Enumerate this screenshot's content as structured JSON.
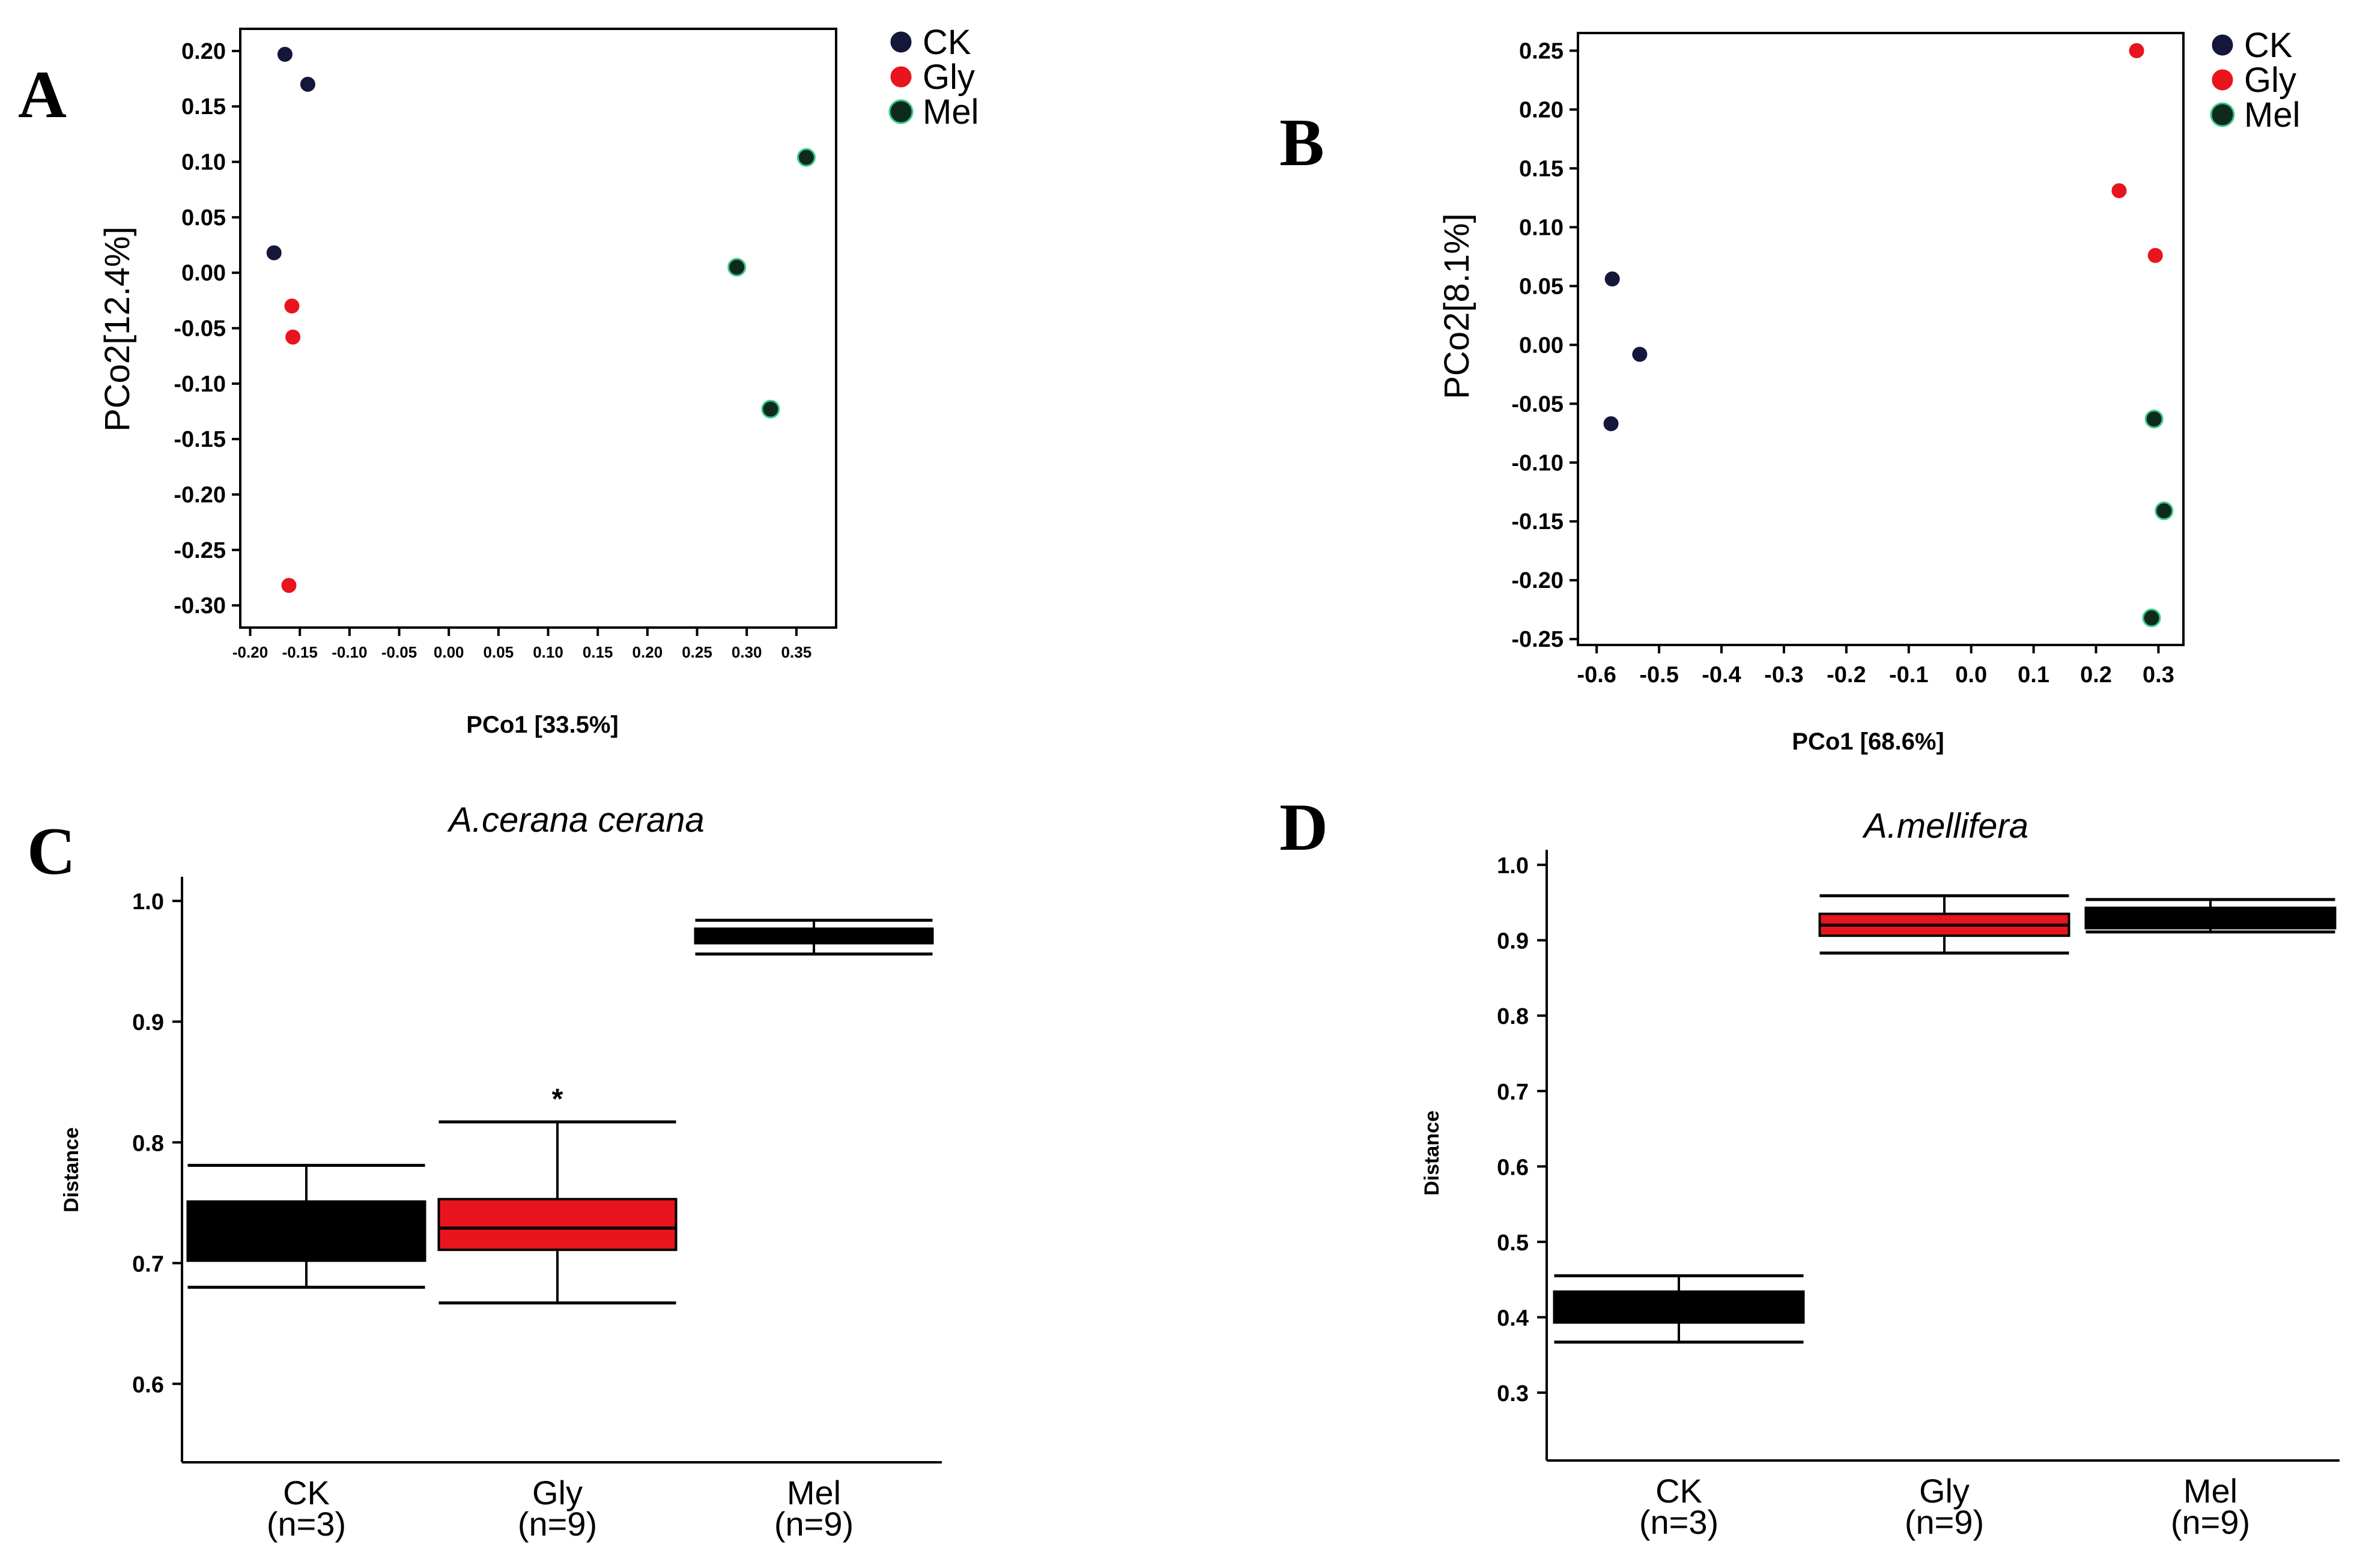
{
  "colors": {
    "CK": "#14173a",
    "Gly": "#e8141e",
    "Mel": "#0d2a1c",
    "Mel_edge": "#3cc98a",
    "box_black": "#000000",
    "box_red": "#e8141e"
  },
  "panels": {
    "A": {
      "letter": "A"
    },
    "B": {
      "letter": "B"
    },
    "C": {
      "letter": "C"
    },
    "D": {
      "letter": "D"
    }
  },
  "chart_data": [
    {
      "id": "A",
      "type": "scatter",
      "title": "",
      "xlabel": "PCo1 [33.5%]",
      "ylabel": "PCo2[12.4%]",
      "xlim": [
        -0.21,
        0.39
      ],
      "ylim": [
        -0.32,
        0.22
      ],
      "xticks": [
        "-0.20",
        "-0.15",
        "-0.10",
        "-0.05",
        "0.00",
        "0.05",
        "0.10",
        "0.15",
        "0.20",
        "0.25",
        "0.30",
        "0.35"
      ],
      "yticks": [
        "0.20",
        "0.15",
        "0.10",
        "0.05",
        "0.00",
        "-0.05",
        "-0.10",
        "-0.15",
        "-0.20",
        "-0.25",
        "-0.30"
      ],
      "legend": [
        "CK",
        "Gly",
        "Mel"
      ],
      "series": [
        {
          "name": "CK",
          "points": [
            [
              -0.165,
              0.197
            ],
            [
              -0.142,
              0.17
            ],
            [
              -0.176,
              0.018
            ]
          ]
        },
        {
          "name": "Gly",
          "points": [
            [
              -0.158,
              -0.03
            ],
            [
              -0.157,
              -0.058
            ],
            [
              -0.161,
              -0.282
            ]
          ]
        },
        {
          "name": "Mel",
          "points": [
            [
              0.36,
              0.104
            ],
            [
              0.29,
              0.005
            ],
            [
              0.324,
              -0.123
            ]
          ]
        }
      ]
    },
    {
      "id": "B",
      "type": "scatter",
      "title": "",
      "xlabel": "PCo1 [68.6%]",
      "ylabel": "PCo2[8.1%]",
      "xlim": [
        -0.63,
        0.34
      ],
      "ylim": [
        -0.255,
        0.265
      ],
      "xticks": [
        "-0.6",
        "-0.5",
        "-0.4",
        "-0.3",
        "-0.2",
        "-0.1",
        "0.0",
        "0.1",
        "0.2",
        "0.3"
      ],
      "yticks": [
        "0.25",
        "0.20",
        "0.15",
        "0.10",
        "0.05",
        "0.00",
        "-0.05",
        "-0.10",
        "-0.15",
        "-0.20",
        "-0.25"
      ],
      "legend": [
        "CK",
        "Gly",
        "Mel"
      ],
      "series": [
        {
          "name": "CK",
          "points": [
            [
              -0.575,
              0.056
            ],
            [
              -0.531,
              -0.008
            ],
            [
              -0.577,
              -0.067
            ]
          ]
        },
        {
          "name": "Gly",
          "points": [
            [
              0.265,
              0.25
            ],
            [
              0.237,
              0.131
            ],
            [
              0.295,
              0.076
            ]
          ]
        },
        {
          "name": "Mel",
          "points": [
            [
              0.293,
              -0.063
            ],
            [
              0.309,
              -0.141
            ],
            [
              0.289,
              -0.232
            ]
          ]
        }
      ]
    },
    {
      "id": "C",
      "type": "box",
      "title": "A.cerana cerana",
      "xlabel": "",
      "ylabel": "Distance",
      "ylim": [
        0.535,
        1.02
      ],
      "yticks": [
        "0.6",
        "0.7",
        "0.8",
        "0.9",
        "1.0"
      ],
      "categories": [
        {
          "name": "CK",
          "n": "(n=3)",
          "min": 0.68,
          "q1": 0.702,
          "median": 0.722,
          "q3": 0.751,
          "max": 0.781,
          "color": "black"
        },
        {
          "name": "Gly",
          "n": "(n=9)",
          "min": 0.667,
          "q1": 0.711,
          "median": 0.729,
          "q3": 0.753,
          "max": 0.817,
          "color": "red",
          "annotation": "*"
        },
        {
          "name": "Mel",
          "n": "(n=9)",
          "min": 0.956,
          "q1": 0.965,
          "median": 0.971,
          "q3": 0.977,
          "max": 0.984,
          "color": "black"
        }
      ]
    },
    {
      "id": "D",
      "type": "box",
      "title": "A.mellifera",
      "xlabel": "",
      "ylabel": "Distance",
      "ylim": [
        0.21,
        1.02
      ],
      "yticks": [
        "0.3",
        "0.4",
        "0.5",
        "0.6",
        "0.7",
        "0.8",
        "0.9",
        "1.0"
      ],
      "categories": [
        {
          "name": "CK",
          "n": "(n=3)",
          "min": 0.367,
          "q1": 0.393,
          "median": 0.41,
          "q3": 0.434,
          "max": 0.455,
          "color": "black"
        },
        {
          "name": "Gly",
          "n": "(n=9)",
          "min": 0.883,
          "q1": 0.906,
          "median": 0.92,
          "q3": 0.935,
          "max": 0.959,
          "color": "red"
        },
        {
          "name": "Mel",
          "n": "(n=9)",
          "min": 0.911,
          "q1": 0.916,
          "median": 0.929,
          "q3": 0.943,
          "max": 0.954,
          "color": "black"
        }
      ]
    }
  ]
}
